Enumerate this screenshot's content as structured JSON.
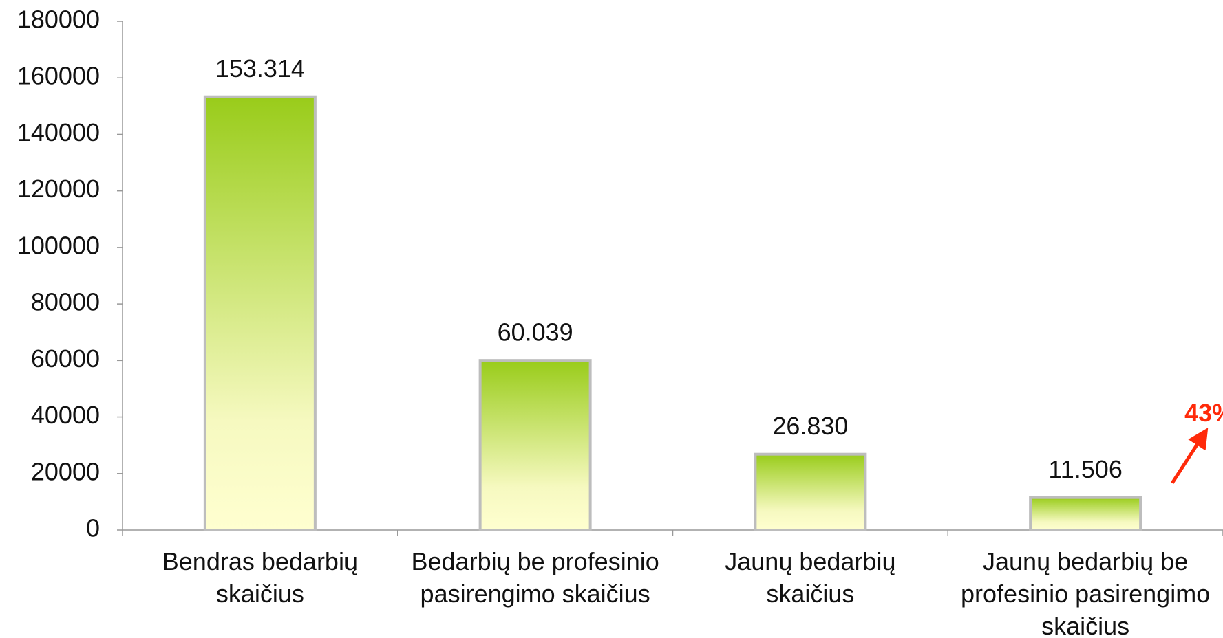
{
  "chart_data": {
    "type": "bar",
    "categories": [
      "Bendras bedarbių\nskaičius",
      "Bedarbių be profesinio\npasirengimo skaičius",
      "Jaunų bedarbių\nskaičius",
      "Jaunų bedarbių be\nprofesinio pasirengimo\nskaičius"
    ],
    "values": [
      153314,
      60039,
      26830,
      11506
    ],
    "value_labels": [
      "153.314",
      "60.039",
      "26.830",
      "11.506"
    ],
    "color": "#99cc1a",
    "ylim": [
      0,
      180000
    ],
    "yticks": [
      0,
      20000,
      40000,
      60000,
      80000,
      100000,
      120000,
      140000,
      160000,
      180000
    ],
    "annotation": {
      "text": "43%",
      "color": "#ff2a0a"
    }
  }
}
